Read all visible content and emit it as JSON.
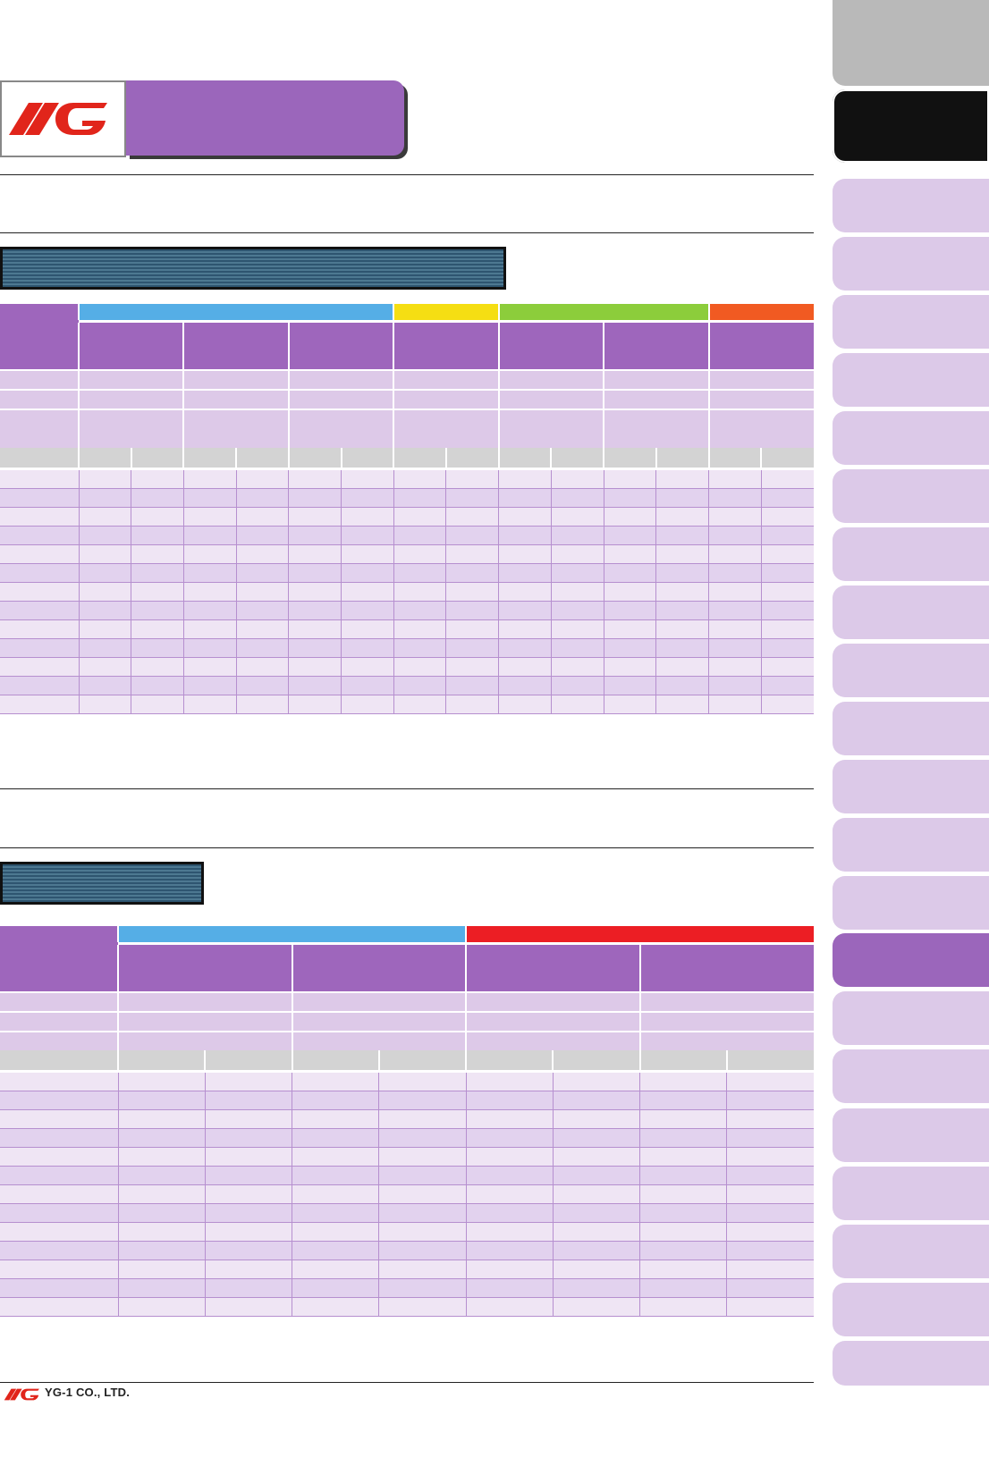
{
  "brand": {
    "logo": "YG",
    "logo_color": "#e1251b",
    "company": "YG-1 CO., LTD."
  },
  "colors": {
    "header_purple": "#9e66bc",
    "row_lavender": "#ddc9e8",
    "row_light": "#efe5f4",
    "row_mid": "#e2d2ee",
    "subheader_gray": "#d3d3d3",
    "banner_teal": "#2e5570",
    "cat_blue": "#55aee6",
    "cat_yellow": "#f5de13",
    "cat_green": "#8ccd3b",
    "cat_orange": "#f15a22",
    "cat_red": "#ec1e24",
    "tab_active": "#9b66bb",
    "tab_gray": "#b9b9b9",
    "tab_dark": "#111111",
    "tab_light": "#dcc9e8"
  },
  "side_tabs": {
    "count": 23,
    "active_index": 15
  },
  "table1": {
    "category_colors": [
      "#55aee6",
      "#f5de13",
      "#8ccd3b",
      "#f15a22"
    ],
    "category_spans": [
      3,
      1,
      2,
      1
    ],
    "data_rows": 13
  },
  "table2": {
    "category_colors": [
      "#55aee6",
      "#ec1e24"
    ],
    "category_spans": [
      2,
      2
    ],
    "data_rows": 13
  }
}
